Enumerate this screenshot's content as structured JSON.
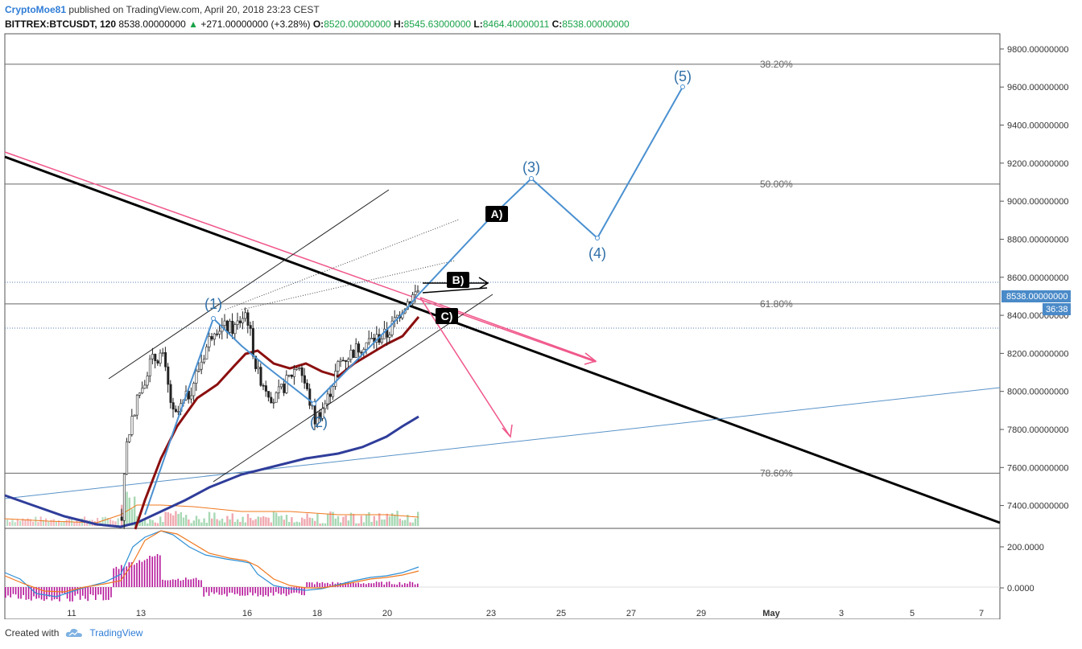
{
  "header": {
    "author": "CryptoMoe81",
    "published_text": "published on TradingView.com, April 20, 2018 23:23 CEST",
    "symbol": "BITTREX:BTCUSDT, 120",
    "last": "8538.00000000",
    "change": "+271.00000000 (+3.28%)",
    "o_label": "O:",
    "o_value": "8520.00000000",
    "h_label": "H:",
    "h_value": "8545.63000000",
    "l_label": "L:",
    "l_value": "8464.40000011",
    "c_label": "C:",
    "c_value": "8538.00000000"
  },
  "footer": {
    "created_with": "Created with",
    "brand": "TradingView"
  },
  "colors": {
    "wave": "#4a90d0",
    "trend": "#000000",
    "pink": "#f0568a",
    "ma_red": "#8b0f0f",
    "ma_blue": "#2f3d9a",
    "price_tag": "#4a8ac8",
    "up": "#1aa34a"
  },
  "chart_data": {
    "type": "candlestick",
    "price_axis": {
      "min": 7280,
      "max": 9880,
      "ticks": [
        "9800.00000000",
        "9600.00000000",
        "9400.00000000",
        "9200.00000000",
        "9000.00000000",
        "8800.00000000",
        "8600.00000000",
        "8400.00000000",
        "8200.00000000",
        "8000.00000000",
        "7800.00000000",
        "7600.00000000",
        "7400.00000000"
      ],
      "tick_values": [
        9800,
        9600,
        9400,
        9200,
        9000,
        8800,
        8600,
        8400,
        8200,
        8000,
        7800,
        7600,
        7400
      ],
      "current_price_label": "8538.00000000",
      "current_price": 8538,
      "countdown": "36:38"
    },
    "time_axis": {
      "ticks": [
        "11",
        "13",
        "16",
        "18",
        "20",
        "23",
        "25",
        "27",
        "29",
        "May",
        "3",
        "5",
        "7"
      ]
    },
    "fib_levels": [
      {
        "label": "38.20%",
        "price": 9720
      },
      {
        "label": "50.00%",
        "price": 9090
      },
      {
        "label": "61.80%",
        "price": 8460
      },
      {
        "label": "78.60%",
        "price": 7570
      }
    ],
    "wave_labels": [
      {
        "label": "(1)",
        "price": 8390
      },
      {
        "label": "(2)",
        "price": 7830
      },
      {
        "label": "(3)",
        "price": 9100
      },
      {
        "label": "(4)",
        "price": 8780
      },
      {
        "label": "(5)",
        "price": 9600
      }
    ],
    "scenario_labels": [
      "A)",
      "B)",
      "C)"
    ],
    "oscillator": {
      "ticks": [
        "200.0000",
        "0.0000"
      ],
      "tick_values": [
        200,
        0
      ]
    }
  }
}
